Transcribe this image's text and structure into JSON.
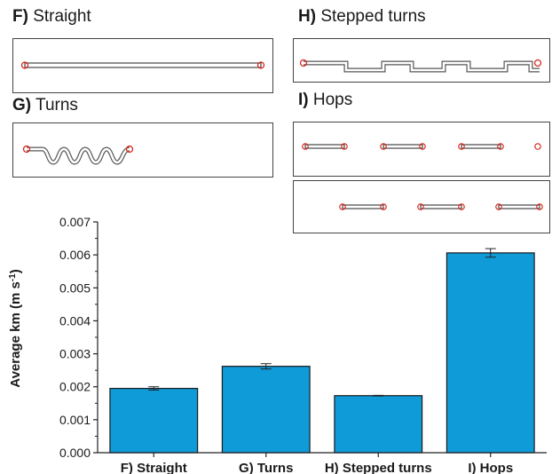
{
  "panels": {
    "F": {
      "letter": "F)",
      "name": "Straight"
    },
    "G": {
      "letter": "G)",
      "name": "Turns"
    },
    "H": {
      "letter": "H)",
      "name": "Stepped turns"
    },
    "I": {
      "letter": "I)",
      "name": "Hops"
    }
  },
  "colors": {
    "bar": "#0f9ad8",
    "marker": "#d9261c",
    "channel": "#555555"
  },
  "chart_data": {
    "type": "bar",
    "categories": [
      "F) Straight",
      "G) Turns",
      "H) Stepped turns",
      "I) Hops"
    ],
    "values": [
      0.00195,
      0.00262,
      0.00173,
      0.00606
    ],
    "errors": [
      5e-05,
      8e-05,
      1e-05,
      0.00013
    ],
    "ylabel_main": "Average km (m s",
    "ylabel_sup": "-1",
    "ylabel_end": ")",
    "ylim": [
      0,
      0.007
    ],
    "yticks": [
      "0.000",
      "0.001",
      "0.002",
      "0.003",
      "0.004",
      "0.005",
      "0.006",
      "0.007"
    ],
    "grid": false
  }
}
